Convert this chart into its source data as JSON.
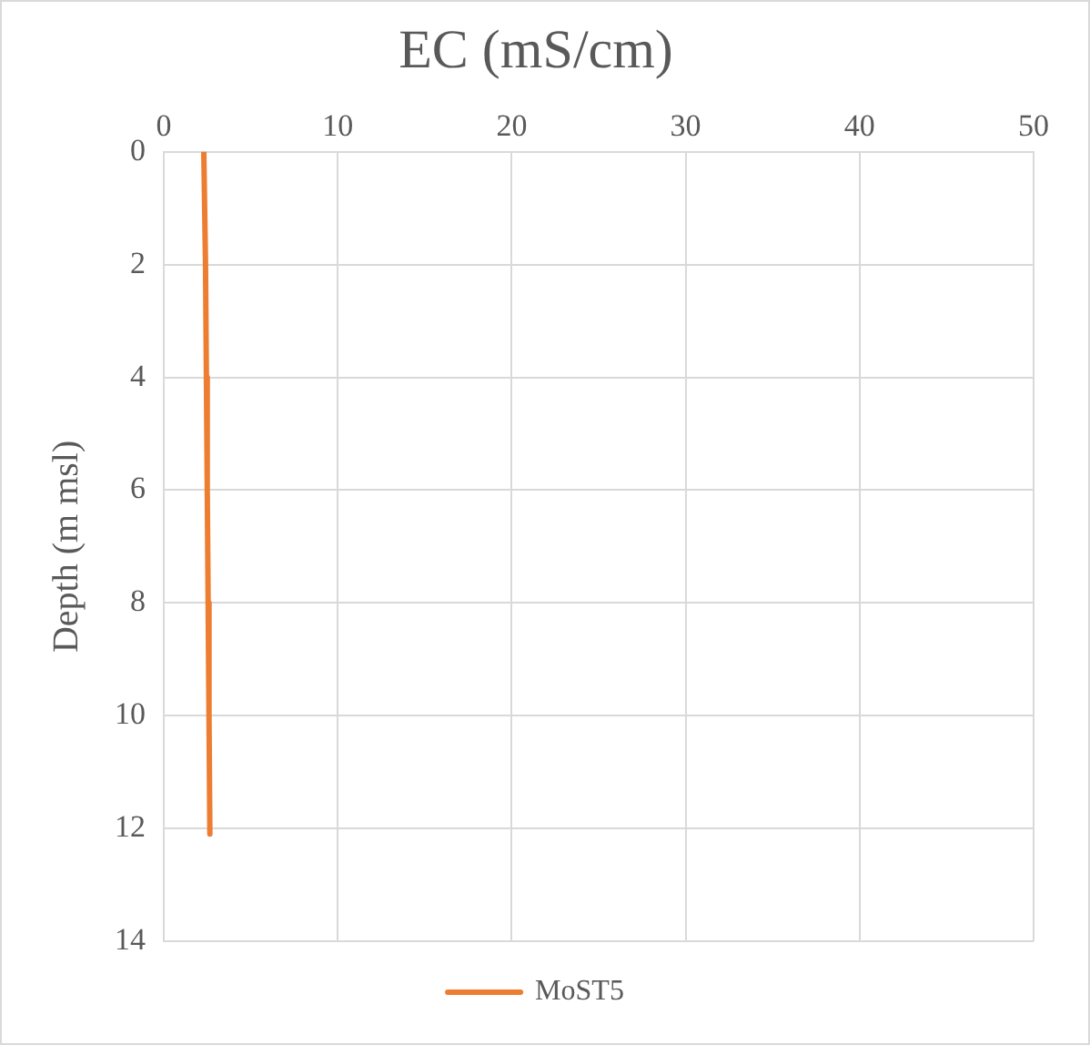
{
  "chart_data": {
    "type": "line",
    "title": "EC (mS/cm)",
    "ylabel": "Depth (m msl)",
    "x": [
      2.3,
      2.4,
      2.45,
      2.5,
      2.55,
      2.6,
      2.65
    ],
    "series": [
      {
        "name": "MoST5",
        "color": "#ed7d31",
        "values": [
          0,
          2,
          4,
          6,
          8,
          10,
          12.1
        ]
      }
    ],
    "xlim": [
      0,
      50
    ],
    "xticks": [
      0,
      10,
      20,
      30,
      40,
      50
    ],
    "ylim": [
      14,
      0
    ],
    "yticks": [
      0,
      2,
      4,
      6,
      8,
      10,
      12,
      14
    ],
    "grid": true,
    "legend": "bottom",
    "marker": "none",
    "line_style": "solid"
  }
}
